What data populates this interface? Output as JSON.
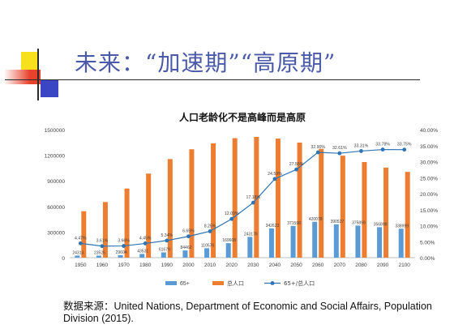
{
  "slide": {
    "title": "未来：“加速期”“高原期”",
    "source": "数据来源：United Nations, Department of Economic and Social Affairs, Population Division (2015)."
  },
  "colors": {
    "title": "#4a5aa8",
    "bar_65plus": "#5b9bd5",
    "bar_total": "#ed7d31",
    "line_ratio": "#2e75b6",
    "deco_yellow": "#f7e11c",
    "deco_red": "#e8412c",
    "deco_blue": "#3b46c4"
  },
  "chart_data": {
    "type": "bar",
    "title": "人口老龄化不是高峰而是高原",
    "categories": [
      "1950",
      "1960",
      "1970",
      "1980",
      "1990",
      "2000",
      "2010",
      "2020",
      "2030",
      "2040",
      "2050",
      "2060",
      "2070",
      "2080",
      "2090",
      "2100"
    ],
    "series": [
      {
        "name": "65+",
        "type": "bar",
        "axis": "left",
        "values": [
          24313,
          23525,
          29604,
          43531,
          61679,
          84462,
          110576,
          169608,
          243176,
          342623,
          371598,
          420078,
          390527,
          375899,
          356898,
          338999
        ],
        "labels": [
          "24313",
          "23525",
          "29604",
          "43531",
          "61679",
          "84462",
          "110576",
          "169608",
          "243176",
          "342623",
          "371598",
          "420078",
          "390527",
          "375899",
          "356898",
          "338999"
        ]
      },
      {
        "name": "总人口",
        "type": "bar",
        "axis": "left",
        "values": [
          544000,
          652000,
          810000,
          985000,
          1155000,
          1270000,
          1340000,
          1400000,
          1415000,
          1395000,
          1348000,
          1275000,
          1195000,
          1120000,
          1055000,
          1005000
        ]
      },
      {
        "name": "65+/总人口",
        "type": "line",
        "axis": "right",
        "values": [
          4.47,
          3.61,
          3.66,
          4.45,
          5.34,
          6.65,
          8.25,
          12.09,
          17.18,
          24.59,
          27.55,
          32.9,
          32.61,
          33.31,
          33.78,
          33.75
        ],
        "labels": [
          "4.47%",
          "3.61%",
          "3.66%",
          "4.45%",
          "5.34%",
          "6.65%",
          "8.25%",
          "12.09%",
          "17.18%",
          "24.59%",
          "27.55%",
          "32.90%",
          "32.61%",
          "33.31%",
          "33.78%",
          "33.75%"
        ]
      }
    ],
    "y_left": {
      "min": 0,
      "max": 1500000,
      "ticks": [
        "0",
        "300000",
        "600000",
        "900000",
        "1200000",
        "1500000"
      ]
    },
    "y_right": {
      "min": 0,
      "max": 40,
      "ticks": [
        "0.00%",
        "5.00%",
        "10.00%",
        "15.00%",
        "20.00%",
        "25.00%",
        "30.00%",
        "35.00%",
        "40.00%"
      ]
    },
    "legend": [
      "65+",
      "总人口",
      "65+/总人口"
    ],
    "legend_position": "bottom",
    "grid": false
  }
}
